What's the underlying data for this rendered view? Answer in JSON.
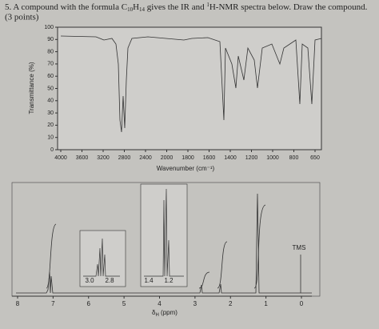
{
  "question": {
    "number": "5.",
    "text_a": "A compound with the formula C",
    "sub1": "10",
    "text_b": "H",
    "sub2": "14",
    "text_c": " gives the IR and ",
    "sup": "1",
    "text_d": "H-NMR spectra below.  Draw the compound.",
    "points": "(3 points)"
  },
  "ir": {
    "y_label": "Transmittance (%)",
    "yticks": [
      0,
      10,
      20,
      30,
      40,
      50,
      60,
      70,
      80,
      90,
      100
    ],
    "xticks": [
      4000,
      3600,
      3200,
      2800,
      2400,
      2000,
      1800,
      1600,
      1400,
      1200,
      1000,
      800,
      650
    ],
    "x_label": "Wavenumber (cm⁻¹)"
  },
  "nmr": {
    "xticks": [
      8,
      7,
      6,
      5,
      4,
      3,
      2,
      1,
      0
    ],
    "x_label_a": "δ",
    "x_label_sub": "H",
    "x_label_b": " (ppm)",
    "tms": "TMS",
    "inset1_ticks": [
      "3.0",
      "2.8"
    ],
    "inset2_ticks": [
      "1.4",
      "1.2"
    ]
  }
}
